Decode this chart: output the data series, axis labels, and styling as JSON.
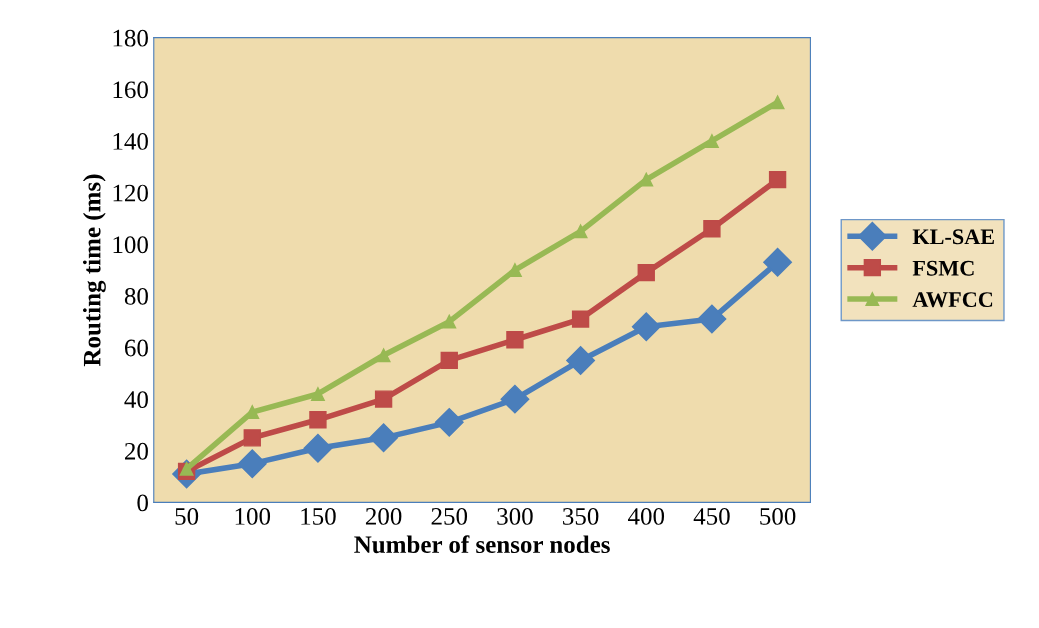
{
  "chart_data": {
    "type": "line",
    "xlabel": "Number of sensor nodes",
    "ylabel": "Routing time (ms)",
    "categories": [
      "50",
      "100",
      "150",
      "200",
      "250",
      "300",
      "350",
      "400",
      "450",
      "500"
    ],
    "ylim": [
      0,
      180
    ],
    "yticks": [
      0,
      20,
      40,
      60,
      80,
      100,
      120,
      140,
      160,
      180
    ],
    "grid": false,
    "legend": "right",
    "line_style": "solid",
    "series": [
      {
        "name": "KL-SAE",
        "color": "#4a7ebb",
        "marker": "diamond",
        "values": [
          11,
          15,
          21,
          25,
          31,
          40,
          55,
          68,
          71,
          93
        ]
      },
      {
        "name": "FSMC",
        "color": "#be4b48",
        "marker": "square",
        "values": [
          12,
          25,
          32,
          40,
          55,
          63,
          71,
          89,
          106,
          125
        ]
      },
      {
        "name": "AWFCC",
        "color": "#98b954",
        "marker": "triangle",
        "values": [
          13,
          35,
          42,
          57,
          70,
          90,
          105,
          125,
          140,
          155
        ]
      }
    ]
  }
}
